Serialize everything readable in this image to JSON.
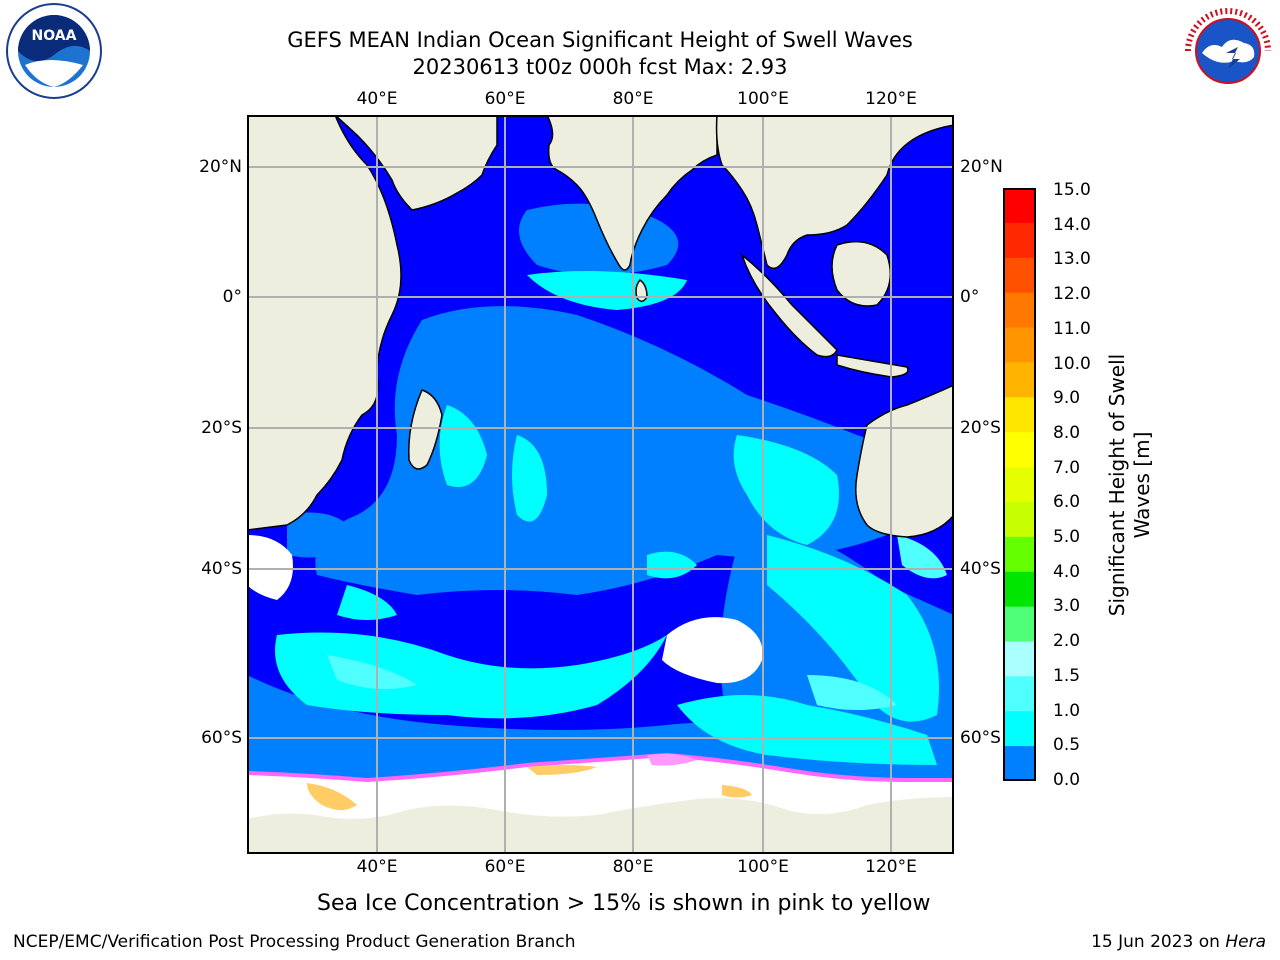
{
  "title": {
    "line1": "GEFS MEAN Indian Ocean Significant Height of Swell Waves",
    "line2": "20230613 t00z 000h fcst   Max: 2.93"
  },
  "map": {
    "lon_ticks": [
      "40°E",
      "60°E",
      "80°E",
      "100°E",
      "120°E"
    ],
    "lat_ticks": [
      "20°N",
      "0°",
      "20°S",
      "40°S",
      "60°S"
    ],
    "grid": true,
    "land_color": "#eeeedf",
    "ocean_base_color": "#0000ff"
  },
  "colorbar": {
    "title": "Significant Height of Swell Waves [m]",
    "labels": [
      "15.0",
      "14.0",
      "13.0",
      "12.0",
      "11.0",
      "10.0",
      "9.0",
      "8.0",
      "7.0",
      "6.0",
      "5.0",
      "4.0",
      "3.0",
      "2.0",
      "1.5",
      "1.0",
      "0.5",
      "0.0"
    ],
    "colors": [
      "#ff0000",
      "#ff2800",
      "#ff5000",
      "#ff7800",
      "#ff9600",
      "#ffb400",
      "#ffe600",
      "#ffff00",
      "#e6ff00",
      "#c8ff00",
      "#64ff00",
      "#00e600",
      "#50ff78",
      "#aaffff",
      "#50ffff",
      "#00ffff",
      "#0080ff",
      "#0000ff"
    ]
  },
  "note": "Sea Ice Concentration > 15% is shown in pink to yellow",
  "footer": {
    "left": "NCEP/EMC/Verification Post Processing Product Generation Branch",
    "date": "15 Jun 2023 on ",
    "host": "Hera"
  },
  "logos": {
    "left": "NOAA",
    "right": "NATIONAL WEATHER SERVICE"
  }
}
